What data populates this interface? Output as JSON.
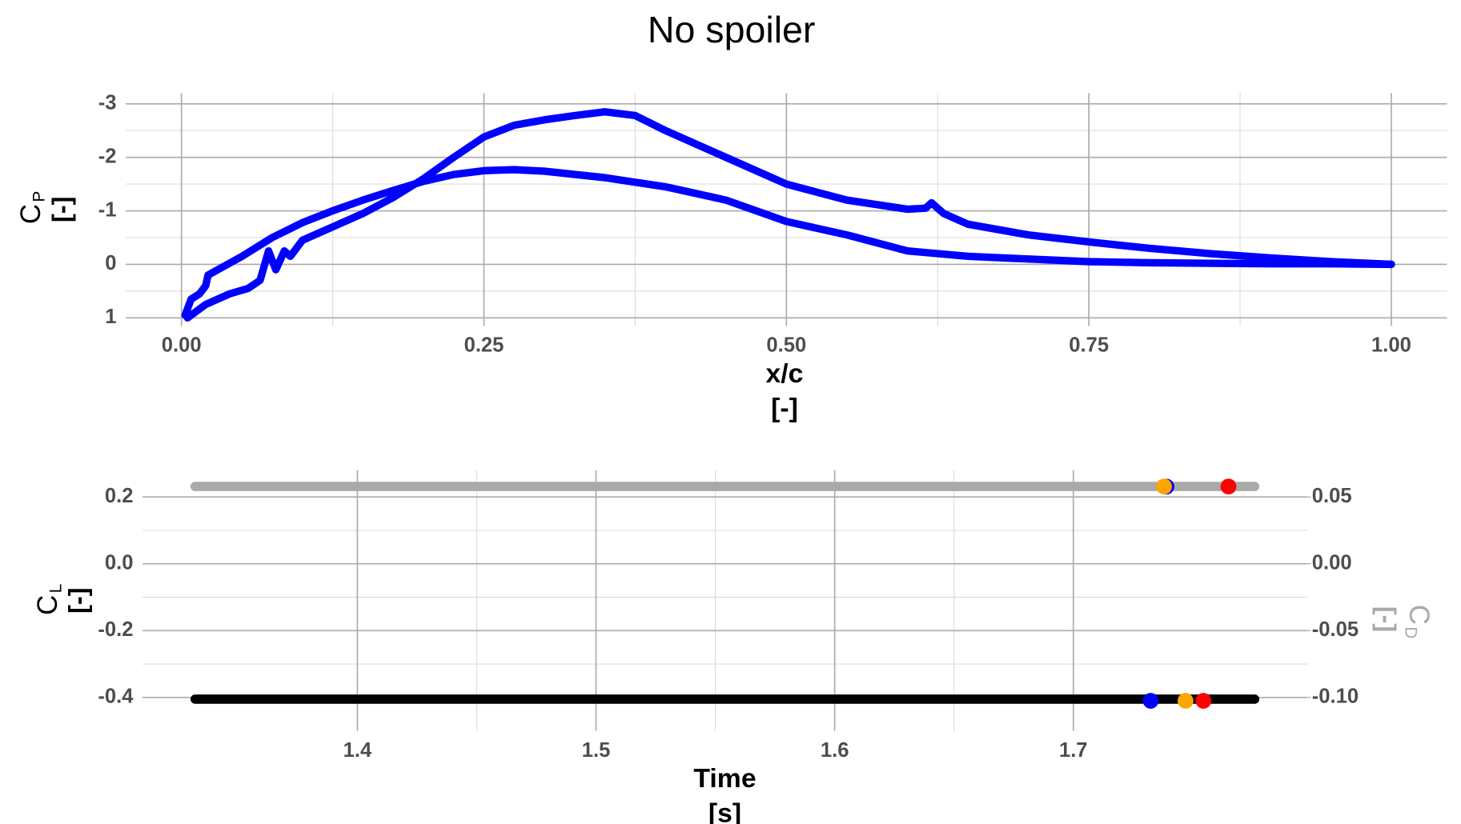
{
  "title": "No spoiler",
  "chart_data": [
    {
      "type": "line",
      "x_label": "x/c",
      "x_label_unit": "[-]",
      "y_label": "C",
      "y_label_sub": "P",
      "y_label_unit": "[-]",
      "xlim": [
        -0.046,
        1.046
      ],
      "xticks": [
        {
          "value": 0,
          "label": "0.00"
        },
        {
          "value": 0.25,
          "label": "0.25"
        },
        {
          "value": 0.5,
          "label": "0.50"
        },
        {
          "value": 0.75,
          "label": "0.75"
        },
        {
          "value": 1,
          "label": "1.00"
        }
      ],
      "ylim": [
        1.15,
        -3.2
      ],
      "yticks": [
        1,
        0,
        -1,
        -2,
        -3
      ],
      "grid": true,
      "series": [
        {
          "color": "#0000ff",
          "x": [
            0.005,
            0.02,
            0.04,
            0.055,
            0.065,
            0.072,
            0.078,
            0.085,
            0.09,
            0.1,
            0.125,
            0.15,
            0.175,
            0.2,
            0.225,
            0.25,
            0.275,
            0.3,
            0.325,
            0.35,
            0.375,
            0.4,
            0.45,
            0.5,
            0.55,
            0.6,
            0.615,
            0.62,
            0.63,
            0.65,
            0.7,
            0.75,
            0.8,
            0.85,
            0.9,
            0.95,
            1.0
          ],
          "values": [
            1.0,
            0.75,
            0.55,
            0.45,
            0.3,
            -0.25,
            0.1,
            -0.25,
            -0.15,
            -0.45,
            -0.7,
            -0.95,
            -1.25,
            -1.6,
            -2.0,
            -2.38,
            -2.6,
            -2.7,
            -2.78,
            -2.85,
            -2.78,
            -2.5,
            -2.0,
            -1.5,
            -1.2,
            -1.03,
            -1.05,
            -1.15,
            -0.95,
            -0.75,
            -0.55,
            -0.42,
            -0.3,
            -0.2,
            -0.12,
            -0.05,
            0.0
          ]
        },
        {
          "color": "#0000ff",
          "x": [
            0.003,
            0.008,
            0.015,
            0.02,
            0.022,
            0.05,
            0.075,
            0.1,
            0.125,
            0.15,
            0.175,
            0.2,
            0.225,
            0.25,
            0.275,
            0.3,
            0.35,
            0.4,
            0.45,
            0.5,
            0.55,
            0.6,
            0.65,
            0.7,
            0.75,
            0.8,
            0.85,
            0.9,
            0.95,
            1.0
          ],
          "values": [
            0.95,
            0.65,
            0.55,
            0.4,
            0.2,
            -0.15,
            -0.5,
            -0.78,
            -1.0,
            -1.2,
            -1.38,
            -1.55,
            -1.68,
            -1.75,
            -1.77,
            -1.74,
            -1.62,
            -1.45,
            -1.2,
            -0.8,
            -0.55,
            -0.25,
            -0.15,
            -0.1,
            -0.05,
            -0.03,
            -0.02,
            -0.01,
            -0.01,
            0.0
          ]
        }
      ]
    },
    {
      "type": "line",
      "x_label": "Time",
      "x_label_unit": "[s]",
      "y_label": "C",
      "y_label_sub": "L",
      "y_label_unit": "[-]",
      "y2_label": "C",
      "y2_label_sub": "D",
      "y2_label_unit": "[-]",
      "y2_color": "#a9a9a9",
      "xlim": [
        1.31,
        1.798
      ],
      "xticks": [
        1.4,
        1.5,
        1.6,
        1.7
      ],
      "ylim": [
        -0.5,
        0.28
      ],
      "yticks": [
        -0.4,
        -0.2,
        {
          "value": 0,
          "label": "0.0"
        },
        0.2
      ],
      "y2lim": [
        -0.125,
        0.07
      ],
      "y2ticks": [
        {
          "value": -0.1,
          "label": "-0.10"
        },
        -0.05,
        {
          "value": 0,
          "label": "0.00"
        },
        0.05
      ],
      "grid": true,
      "series": [
        {
          "color": "#a9a9a9",
          "axis": "y2",
          "style": "line",
          "x": [
            1.332,
            1.4,
            1.5,
            1.6,
            1.7,
            1.776
          ],
          "values": [
            0.0578,
            0.0578,
            0.0578,
            0.0578,
            0.0578,
            0.0578
          ]
        },
        {
          "color": "#000000",
          "style": "line",
          "x": [
            1.332,
            1.4,
            1.5,
            1.6,
            1.7,
            1.776
          ],
          "values": [
            -0.405,
            -0.405,
            -0.405,
            -0.405,
            -0.405,
            -0.405
          ]
        },
        {
          "color": "#0000ff",
          "axis": "y2",
          "style": "points",
          "x": [
            1.739
          ],
          "values": [
            0.0577
          ]
        },
        {
          "color": "#ffa500",
          "axis": "y2",
          "style": "points",
          "x": [
            1.738
          ],
          "values": [
            0.0578
          ]
        },
        {
          "color": "#ff0000",
          "axis": "y2",
          "style": "points",
          "x": [
            1.765
          ],
          "values": [
            0.0578
          ]
        },
        {
          "color": "#0000ff",
          "style": "points",
          "x": [
            1.7324
          ],
          "values": [
            -0.41
          ]
        },
        {
          "color": "#ffa500",
          "style": "points",
          "x": [
            1.747
          ],
          "values": [
            -0.41
          ]
        },
        {
          "color": "#ff0000",
          "style": "points",
          "x": [
            1.7545
          ],
          "values": [
            -0.41
          ]
        }
      ]
    }
  ]
}
